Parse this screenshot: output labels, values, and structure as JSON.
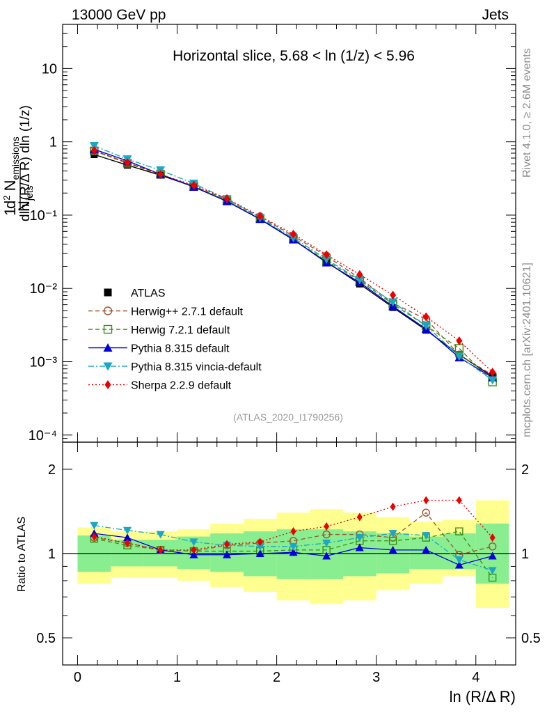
{
  "header": {
    "energy_label": "13000 GeV pp",
    "process_label": "Jets"
  },
  "side_labels": {
    "rivet": "Rivet 4.1.0, ≥ 2.6M events",
    "mcplots": "mcplots.cern.ch [arXiv:2401.10621]"
  },
  "chart_data": [
    {
      "type": "line",
      "panel": "main",
      "title": "Horizontal slice, 5.68 < ln (1/z) < 5.96",
      "watermark": "(ATLAS_2020_I1790256)",
      "ylabel": "1/N_jets d²N_emissions / dln(R/ΔR) dln(1/z)",
      "yscale": "log",
      "xlim": [
        -0.15,
        4.4
      ],
      "ylim": [
        8e-05,
        40
      ],
      "y_tick_labels": [
        "10⁻⁴",
        "10⁻³",
        "10⁻²",
        "10⁻¹",
        "1",
        "10"
      ],
      "x": [
        0.167,
        0.5,
        0.833,
        1.167,
        1.5,
        1.833,
        2.167,
        2.5,
        2.833,
        3.167,
        3.5,
        3.833,
        4.167
      ],
      "series": [
        {
          "name": "ATLAS",
          "color": "#000000",
          "marker": "square",
          "dash": "",
          "values": [
            0.67,
            0.48,
            0.35,
            0.245,
            0.155,
            0.088,
            0.046,
            0.023,
            0.0115,
            0.0055,
            0.0027,
            0.00125,
            0.00063
          ]
        },
        {
          "name": "Herwig++ 2.7.1 default",
          "color": "#a0522d",
          "marker": "circle-open",
          "dash": "6,4",
          "values": [
            0.76,
            0.52,
            0.36,
            0.248,
            0.165,
            0.095,
            0.052,
            0.0276,
            0.0138,
            0.0063,
            0.0038,
            0.00124,
            0.00066
          ]
        },
        {
          "name": "Herwig 7.2.1 default",
          "color": "#3a8f12",
          "marker": "square-open",
          "dash": "6,4",
          "values": [
            0.75,
            0.51,
            0.36,
            0.25,
            0.158,
            0.09,
            0.047,
            0.0237,
            0.0128,
            0.0061,
            0.0031,
            0.00152,
            0.00053
          ]
        },
        {
          "name": "Pythia 8.315 default",
          "color": "#0000dd",
          "marker": "triangle-up",
          "dash": "",
          "values": [
            0.79,
            0.55,
            0.36,
            0.242,
            0.154,
            0.088,
            0.0464,
            0.0225,
            0.0121,
            0.0057,
            0.0028,
            0.00114,
            0.00061
          ]
        },
        {
          "name": "Pythia 8.315 vincia-default",
          "color": "#1aa7c4",
          "marker": "triangle-down",
          "dash": "8,3,2,3",
          "values": [
            0.88,
            0.58,
            0.41,
            0.27,
            0.166,
            0.092,
            0.049,
            0.025,
            0.0131,
            0.0065,
            0.0031,
            0.00118,
            0.00056
          ]
        },
        {
          "name": "Sherpa 2.2.9 default",
          "color": "#ee0000",
          "marker": "diamond",
          "dash": "2,3",
          "values": [
            0.76,
            0.52,
            0.36,
            0.255,
            0.168,
            0.097,
            0.055,
            0.0288,
            0.0155,
            0.0081,
            0.0041,
            0.00193,
            0.00072
          ]
        }
      ]
    },
    {
      "type": "line",
      "panel": "ratio",
      "ylabel": "Ratio to ATLAS",
      "yscale": "log",
      "xlabel": "ln (R/Δ R)",
      "xlim": [
        -0.15,
        4.4
      ],
      "ylim": [
        0.4,
        2.5
      ],
      "x_ticks": [
        0,
        1,
        2,
        3,
        4
      ],
      "y_ticks": [
        0.5,
        1,
        2
      ],
      "reference": 1,
      "bin_edges": [
        0,
        0.333,
        0.667,
        1,
        1.333,
        1.667,
        2,
        2.333,
        2.667,
        3,
        3.333,
        3.667,
        4,
        4.333
      ],
      "band_inner": [
        [
          0.86,
          1.16
        ],
        [
          0.9,
          1.12
        ],
        [
          0.9,
          1.12
        ],
        [
          0.88,
          1.15
        ],
        [
          0.86,
          1.18
        ],
        [
          0.83,
          1.2
        ],
        [
          0.81,
          1.22
        ],
        [
          0.81,
          1.22
        ],
        [
          0.83,
          1.2
        ],
        [
          0.85,
          1.18
        ],
        [
          0.88,
          1.15
        ],
        [
          0.88,
          1.18
        ],
        [
          0.78,
          1.28
        ]
      ],
      "band_outer": [
        [
          0.78,
          1.24
        ],
        [
          0.82,
          1.2
        ],
        [
          0.82,
          1.2
        ],
        [
          0.8,
          1.22
        ],
        [
          0.76,
          1.28
        ],
        [
          0.73,
          1.33
        ],
        [
          0.68,
          1.4
        ],
        [
          0.66,
          1.44
        ],
        [
          0.68,
          1.4
        ],
        [
          0.74,
          1.35
        ],
        [
          0.78,
          1.3
        ],
        [
          0.83,
          1.32
        ],
        [
          0.64,
          1.55
        ]
      ],
      "x": [
        0.167,
        0.5,
        0.833,
        1.167,
        1.5,
        1.833,
        2.167,
        2.5,
        2.833,
        3.167,
        3.5,
        3.833,
        4.167
      ],
      "series": [
        {
          "name": "Herwig++ 2.7.1 default",
          "color": "#a0522d",
          "marker": "circle-open",
          "dash": "6,4",
          "values": [
            1.14,
            1.09,
            1.03,
            1.02,
            1.07,
            1.09,
            1.11,
            1.17,
            1.17,
            1.14,
            1.4,
            0.99,
            1.06
          ]
        },
        {
          "name": "Herwig 7.2.1 default",
          "color": "#3a8f12",
          "marker": "square-open",
          "dash": "6,4",
          "values": [
            1.13,
            1.07,
            1.03,
            1.02,
            1.02,
            1.02,
            1.03,
            1.03,
            1.11,
            1.11,
            1.14,
            1.2,
            0.82
          ]
        },
        {
          "name": "Pythia 8.315 default",
          "color": "#0000dd",
          "marker": "triangle-up",
          "dash": "",
          "values": [
            1.18,
            1.14,
            1.03,
            0.99,
            0.99,
            1.0,
            1.01,
            0.98,
            1.05,
            1.03,
            1.03,
            0.91,
            0.98
          ]
        },
        {
          "name": "Pythia 8.315 vincia-default",
          "color": "#1aa7c4",
          "marker": "triangle-down",
          "dash": "8,3,2,3",
          "values": [
            1.26,
            1.21,
            1.17,
            1.1,
            1.07,
            1.06,
            1.06,
            1.09,
            1.14,
            1.18,
            1.16,
            0.95,
            0.87
          ]
        },
        {
          "name": "Sherpa 2.2.9 default",
          "color": "#ee0000",
          "marker": "diamond",
          "dash": "2,3",
          "values": [
            1.15,
            1.09,
            1.03,
            1.03,
            1.08,
            1.1,
            1.2,
            1.25,
            1.35,
            1.47,
            1.55,
            1.55,
            1.14
          ]
        }
      ]
    }
  ]
}
